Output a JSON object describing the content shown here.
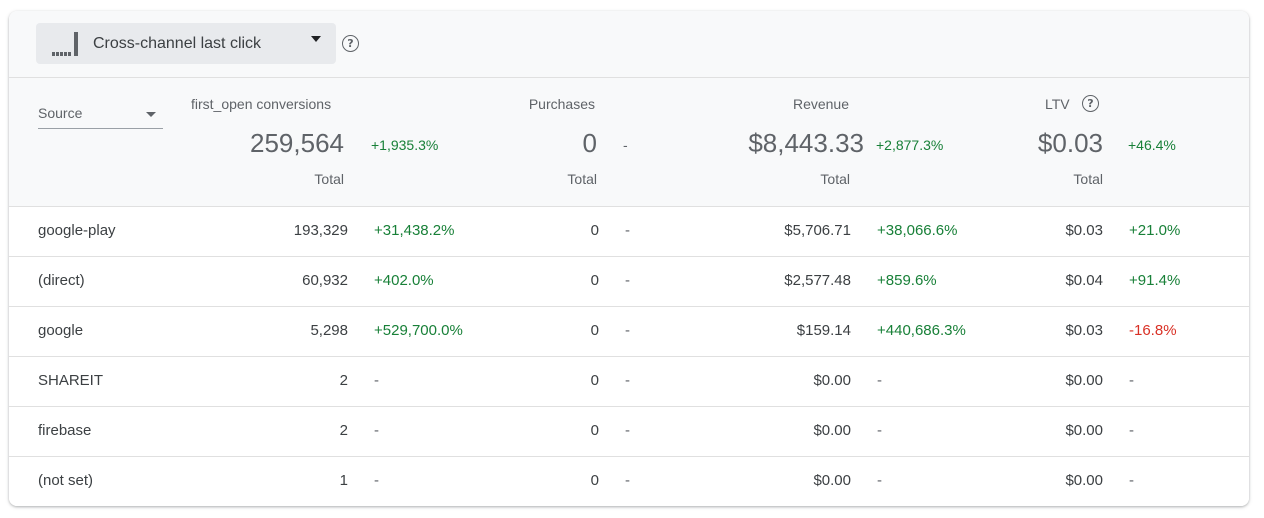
{
  "attribution": {
    "model_label": "Cross-channel last click"
  },
  "dimension": {
    "label": "Source"
  },
  "metrics": {
    "conversions": {
      "label": "first_open conversions",
      "total": "259,564",
      "change": "+1,935.3%",
      "total_label": "Total"
    },
    "purchases": {
      "label": "Purchases",
      "total": "0",
      "change": "-",
      "total_label": "Total"
    },
    "revenue": {
      "label": "Revenue",
      "total": "$8,443.33",
      "change": "+2,877.3%",
      "total_label": "Total"
    },
    "ltv": {
      "label": "LTV",
      "total": "$0.03",
      "change": "+46.4%",
      "total_label": "Total"
    }
  },
  "rows": [
    {
      "source": "google-play",
      "conversions": "193,329",
      "conversions_change": "+31,438.2%",
      "purchases": "0",
      "purchases_change": "-",
      "revenue": "$5,706.71",
      "revenue_change": "+38,066.6%",
      "ltv": "$0.03",
      "ltv_change": "+21.0%"
    },
    {
      "source": "(direct)",
      "conversions": "60,932",
      "conversions_change": "+402.0%",
      "purchases": "0",
      "purchases_change": "-",
      "revenue": "$2,577.48",
      "revenue_change": "+859.6%",
      "ltv": "$0.04",
      "ltv_change": "+91.4%"
    },
    {
      "source": "google",
      "conversions": "5,298",
      "conversions_change": "+529,700.0%",
      "purchases": "0",
      "purchases_change": "-",
      "revenue": "$159.14",
      "revenue_change": "+440,686.3%",
      "ltv": "$0.03",
      "ltv_change": "-16.8%"
    },
    {
      "source": "SHAREIT",
      "conversions": "2",
      "conversions_change": "-",
      "purchases": "0",
      "purchases_change": "-",
      "revenue": "$0.00",
      "revenue_change": "-",
      "ltv": "$0.00",
      "ltv_change": "-"
    },
    {
      "source": "firebase",
      "conversions": "2",
      "conversions_change": "-",
      "purchases": "0",
      "purchases_change": "-",
      "revenue": "$0.00",
      "revenue_change": "-",
      "ltv": "$0.00",
      "ltv_change": "-"
    },
    {
      "source": "(not set)",
      "conversions": "1",
      "conversions_change": "-",
      "purchases": "0",
      "purchases_change": "-",
      "revenue": "$0.00",
      "revenue_change": "-",
      "ltv": "$0.00",
      "ltv_change": "-"
    }
  ],
  "colors": {
    "positive": "#188038",
    "negative": "#d93025",
    "neutral": "#5f6368"
  },
  "icons": {
    "model": "attribution-model-icon",
    "help": "help-circle-icon",
    "dropdown": "caret-down-icon"
  }
}
